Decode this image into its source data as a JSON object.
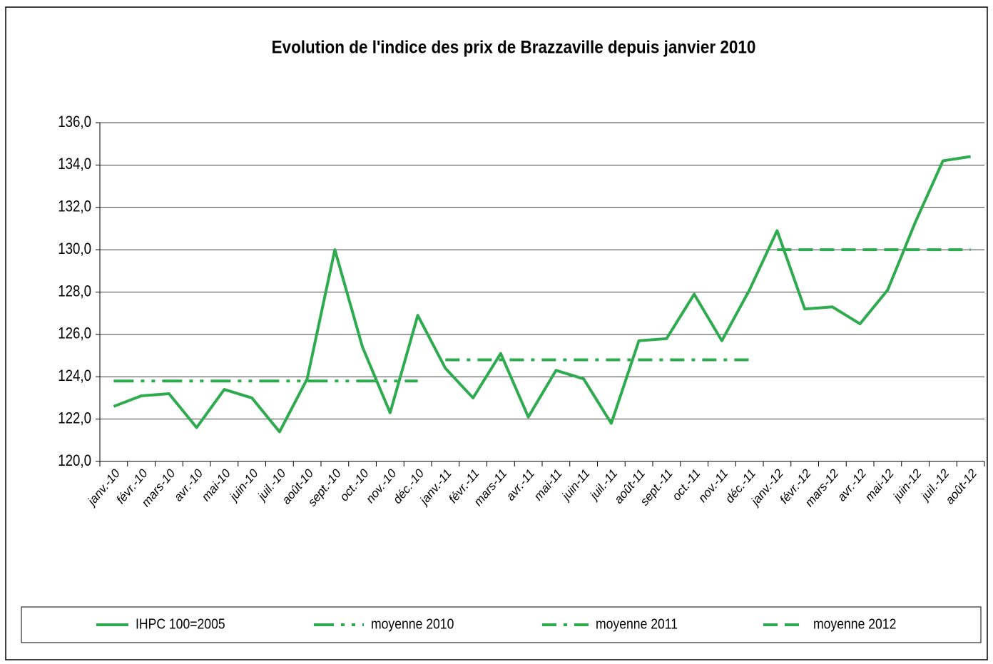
{
  "chart_data": {
    "type": "line",
    "title": "Evolution de l'indice des prix de Brazzaville depuis janvier 2010",
    "categories": [
      "janv.-10",
      "févr.-10",
      "mars-10",
      "avr.-10",
      "mai-10",
      "juin-10",
      "juil.-10",
      "août-10",
      "sept.-10",
      "oct.-10",
      "nov.-10",
      "déc.-10",
      "janv.-11",
      "févr.-11",
      "mars-11",
      "avr.-11",
      "mai-11",
      "juin-11",
      "juil.-11",
      "août-11",
      "sept.-11",
      "oct.-11",
      "nov.-11",
      "déc.-11",
      "janv.-12",
      "févr.-12",
      "mars-12",
      "avr.-12",
      "mai-12",
      "juin-12",
      "juil.-12",
      "août-12"
    ],
    "series": [
      {
        "name": "IHPC 100=2005",
        "color": "#2eaa4f",
        "linestyle": "solid",
        "values": [
          122.6,
          123.1,
          123.2,
          121.6,
          123.4,
          123.0,
          121.4,
          123.9,
          130.0,
          125.4,
          122.3,
          126.9,
          124.4,
          123.0,
          125.1,
          122.1,
          124.3,
          123.9,
          121.8,
          125.7,
          125.8,
          127.9,
          125.7,
          128.1,
          130.9,
          127.2,
          127.3,
          126.5,
          128.1,
          131.3,
          134.2,
          134.4
        ]
      },
      {
        "name": "moyenne 2010",
        "color": "#2eaa4f",
        "linestyle": "dash-dot-dot",
        "values": [
          123.8,
          123.8,
          123.8,
          123.8,
          123.8,
          123.8,
          123.8,
          123.8,
          123.8,
          123.8,
          123.8,
          123.8,
          null,
          null,
          null,
          null,
          null,
          null,
          null,
          null,
          null,
          null,
          null,
          null,
          null,
          null,
          null,
          null,
          null,
          null,
          null,
          null
        ]
      },
      {
        "name": "moyenne 2011",
        "color": "#2eaa4f",
        "linestyle": "dash-dot",
        "values": [
          null,
          null,
          null,
          null,
          null,
          null,
          null,
          null,
          null,
          null,
          null,
          null,
          124.8,
          124.8,
          124.8,
          124.8,
          124.8,
          124.8,
          124.8,
          124.8,
          124.8,
          124.8,
          124.8,
          124.8,
          null,
          null,
          null,
          null,
          null,
          null,
          null,
          null
        ]
      },
      {
        "name": "moyenne 2012",
        "color": "#2eaa4f",
        "linestyle": "dashed",
        "values": [
          null,
          null,
          null,
          null,
          null,
          null,
          null,
          null,
          null,
          null,
          null,
          null,
          null,
          null,
          null,
          null,
          null,
          null,
          null,
          null,
          null,
          null,
          null,
          null,
          130.0,
          130.0,
          130.0,
          130.0,
          130.0,
          130.0,
          130.0,
          130.0
        ]
      }
    ],
    "ylim": [
      120,
      136
    ],
    "yticks": [
      {
        "value": 120,
        "label": "120,0"
      },
      {
        "value": 122,
        "label": "122,0"
      },
      {
        "value": 124,
        "label": "124,0"
      },
      {
        "value": 126,
        "label": "126,0"
      },
      {
        "value": 128,
        "label": "128,0"
      },
      {
        "value": 130,
        "label": "130,0"
      },
      {
        "value": 132,
        "label": "132,0"
      },
      {
        "value": 134,
        "label": "134,0"
      },
      {
        "value": 136,
        "label": "136,0"
      }
    ],
    "grid": true,
    "legend": "bottom"
  }
}
